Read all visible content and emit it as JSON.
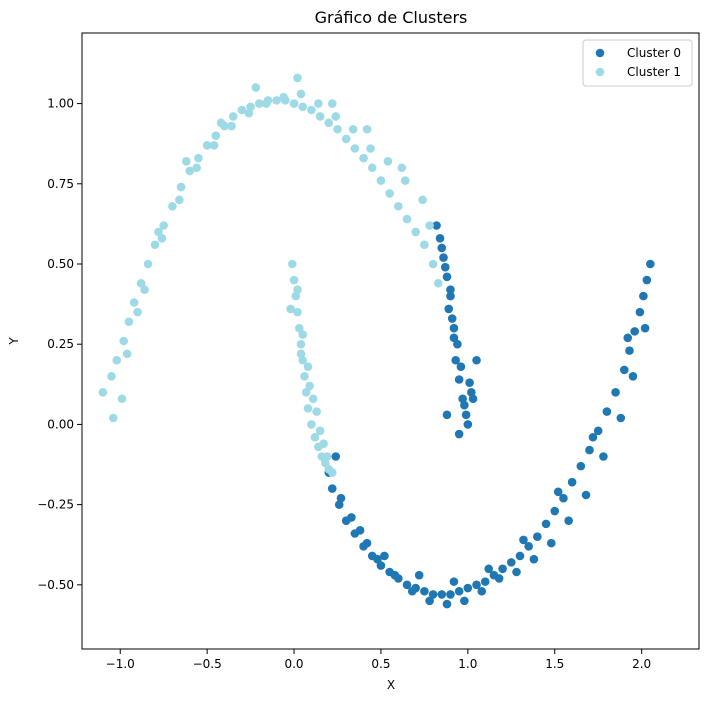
{
  "chart_data": {
    "type": "scatter",
    "title": "Gráfico de Clusters",
    "xlabel": "X",
    "ylabel": "Y",
    "xlim": [
      -1.22,
      2.33
    ],
    "ylim": [
      -0.7,
      1.22
    ],
    "xticks": [
      {
        "value": -1.0,
        "label": "−1.0"
      },
      {
        "value": -0.5,
        "label": "−0.5"
      },
      {
        "value": 0.0,
        "label": "0.0"
      },
      {
        "value": 0.5,
        "label": "0.5"
      },
      {
        "value": 1.0,
        "label": "1.0"
      },
      {
        "value": 1.5,
        "label": "1.5"
      },
      {
        "value": 2.0,
        "label": "2.0"
      }
    ],
    "yticks": [
      {
        "value": -0.5,
        "label": "−0.50"
      },
      {
        "value": -0.25,
        "label": "−0.25"
      },
      {
        "value": 0.0,
        "label": "0.00"
      },
      {
        "value": 0.25,
        "label": "0.25"
      },
      {
        "value": 0.5,
        "label": "0.50"
      },
      {
        "value": 0.75,
        "label": "0.75"
      },
      {
        "value": 1.0,
        "label": "1.00"
      }
    ],
    "grid": false,
    "legend_position": "top-right",
    "series": [
      {
        "name": "Cluster 0",
        "color": "#1f77b4",
        "x": [
          0.2,
          0.22,
          0.26,
          0.3,
          0.35,
          0.4,
          0.45,
          0.5,
          0.55,
          0.6,
          0.65,
          0.7,
          0.75,
          0.8,
          0.85,
          0.9,
          0.95,
          1.0,
          1.05,
          1.1,
          1.15,
          1.2,
          1.25,
          1.3,
          1.35,
          1.4,
          1.45,
          1.5,
          1.55,
          1.6,
          1.65,
          1.7,
          1.75,
          1.8,
          1.85,
          1.9,
          1.93,
          1.96,
          1.99,
          2.01,
          2.03,
          2.05,
          0.27,
          0.33,
          0.42,
          0.48,
          0.58,
          0.68,
          0.78,
          0.88,
          0.98,
          1.08,
          1.18,
          1.28,
          1.38,
          1.48,
          1.58,
          1.68,
          1.78,
          1.88,
          1.95,
          2.02,
          0.24,
          0.38,
          0.52,
          0.72,
          0.92,
          1.12,
          1.32,
          1.52,
          1.72,
          1.92,
          0.84,
          0.86,
          0.88,
          0.9,
          0.91,
          0.92,
          0.93,
          0.95,
          0.97,
          0.99,
          1.0,
          1.02,
          0.87,
          0.89,
          0.94,
          0.96,
          1.01,
          0.85,
          0.92,
          0.98,
          0.82,
          0.9,
          1.05,
          0.88,
          0.95,
          1.03
        ],
        "y": [
          -0.15,
          -0.2,
          -0.25,
          -0.3,
          -0.34,
          -0.38,
          -0.41,
          -0.44,
          -0.46,
          -0.48,
          -0.5,
          -0.51,
          -0.52,
          -0.53,
          -0.53,
          -0.53,
          -0.52,
          -0.51,
          -0.5,
          -0.49,
          -0.47,
          -0.45,
          -0.43,
          -0.41,
          -0.38,
          -0.35,
          -0.31,
          -0.27,
          -0.23,
          -0.18,
          -0.13,
          -0.08,
          -0.02,
          0.04,
          0.1,
          0.17,
          0.23,
          0.29,
          0.35,
          0.4,
          0.45,
          0.5,
          -0.23,
          -0.29,
          -0.37,
          -0.42,
          -0.47,
          -0.52,
          -0.55,
          -0.56,
          -0.55,
          -0.52,
          -0.48,
          -0.46,
          -0.42,
          -0.37,
          -0.3,
          -0.22,
          -0.1,
          0.02,
          0.15,
          0.3,
          -0.1,
          -0.33,
          -0.41,
          -0.47,
          -0.49,
          -0.45,
          -0.36,
          -0.21,
          -0.04,
          0.27,
          0.58,
          0.52,
          0.46,
          0.4,
          0.33,
          0.27,
          0.2,
          0.14,
          0.08,
          0.03,
          0.0,
          0.1,
          0.49,
          0.36,
          0.25,
          0.18,
          0.13,
          0.55,
          0.3,
          0.06,
          0.62,
          0.42,
          0.2,
          0.03,
          -0.03,
          0.08
        ]
      },
      {
        "name": "Cluster 1",
        "color": "#9edae5",
        "x": [
          -1.1,
          -1.05,
          -1.02,
          -0.98,
          -0.95,
          -0.92,
          -0.88,
          -0.84,
          -0.8,
          -0.75,
          -0.7,
          -0.65,
          -0.6,
          -0.55,
          -0.5,
          -0.45,
          -0.4,
          -0.35,
          -0.3,
          -0.25,
          -0.2,
          -0.15,
          -0.1,
          -0.05,
          0.0,
          0.05,
          0.1,
          0.15,
          0.2,
          0.25,
          0.3,
          0.35,
          0.4,
          0.45,
          0.5,
          0.55,
          0.6,
          0.65,
          0.7,
          0.75,
          0.8,
          0.83,
          -1.04,
          -0.96,
          -0.86,
          -0.76,
          -0.66,
          -0.56,
          -0.46,
          -0.36,
          -0.26,
          -0.16,
          -0.06,
          0.04,
          0.14,
          0.24,
          0.34,
          0.44,
          0.54,
          0.64,
          0.74,
          -0.99,
          -0.9,
          -0.78,
          -0.62,
          -0.42,
          -0.22,
          0.02,
          0.22,
          0.42,
          0.62,
          0.78,
          -0.01,
          0.0,
          0.01,
          0.02,
          0.03,
          0.04,
          0.05,
          0.06,
          0.07,
          0.08,
          0.1,
          0.12,
          0.14,
          0.16,
          0.18,
          0.2,
          0.22,
          0.02,
          0.05,
          0.08,
          0.11,
          0.15,
          0.19,
          -0.02,
          0.04,
          0.09,
          0.13,
          0.17
        ],
        "y": [
          0.1,
          0.15,
          0.2,
          0.26,
          0.32,
          0.38,
          0.44,
          0.5,
          0.56,
          0.62,
          0.68,
          0.74,
          0.79,
          0.83,
          0.87,
          0.9,
          0.93,
          0.96,
          0.98,
          0.99,
          1.0,
          1.01,
          1.01,
          1.01,
          1.0,
          0.99,
          0.98,
          0.96,
          0.94,
          0.92,
          0.89,
          0.86,
          0.83,
          0.8,
          0.76,
          0.72,
          0.68,
          0.64,
          0.6,
          0.56,
          0.5,
          0.44,
          0.02,
          0.22,
          0.42,
          0.58,
          0.7,
          0.8,
          0.87,
          0.93,
          0.97,
          1.0,
          1.02,
          1.03,
          1.0,
          0.96,
          0.92,
          0.86,
          0.82,
          0.76,
          0.7,
          0.08,
          0.35,
          0.6,
          0.82,
          0.94,
          1.05,
          1.08,
          1.0,
          0.92,
          0.8,
          0.62,
          0.5,
          0.45,
          0.4,
          0.35,
          0.3,
          0.25,
          0.2,
          0.15,
          0.1,
          0.05,
          0.0,
          -0.04,
          -0.07,
          -0.1,
          -0.12,
          -0.14,
          -0.15,
          0.42,
          0.28,
          0.18,
          0.08,
          -0.02,
          -0.1,
          0.36,
          0.22,
          0.12,
          0.04,
          -0.06
        ]
      }
    ]
  }
}
